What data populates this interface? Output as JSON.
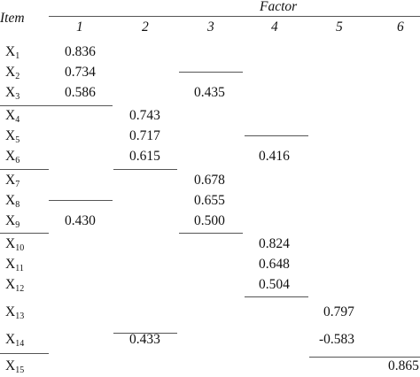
{
  "header": {
    "item_label": "Item",
    "factor_label": "Factor",
    "factor_numbers": [
      "1",
      "2",
      "3",
      "4",
      "5",
      "6"
    ]
  },
  "items": [
    {
      "base": "X",
      "sub": "1"
    },
    {
      "base": "X",
      "sub": "2"
    },
    {
      "base": "X",
      "sub": "3"
    },
    {
      "base": "X",
      "sub": "4"
    },
    {
      "base": "X",
      "sub": "5"
    },
    {
      "base": "X",
      "sub": "6"
    },
    {
      "base": "X",
      "sub": "7"
    },
    {
      "base": "X",
      "sub": "8"
    },
    {
      "base": "X",
      "sub": "9"
    },
    {
      "base": "X",
      "sub": "10"
    },
    {
      "base": "X",
      "sub": "11"
    },
    {
      "base": "X",
      "sub": "12"
    },
    {
      "base": "X",
      "sub": "13"
    },
    {
      "base": "X",
      "sub": "14"
    },
    {
      "base": "X",
      "sub": "15"
    }
  ],
  "loadings": [
    {
      "row": 0,
      "factor": 1,
      "value": "0.836"
    },
    {
      "row": 1,
      "factor": 1,
      "value": "0.734"
    },
    {
      "row": 2,
      "factor": 1,
      "value": "0.586"
    },
    {
      "row": 2,
      "factor": 3,
      "value": "0.435"
    },
    {
      "row": 3,
      "factor": 2,
      "value": "0.743"
    },
    {
      "row": 4,
      "factor": 2,
      "value": "0.717"
    },
    {
      "row": 5,
      "factor": 2,
      "value": "0.615"
    },
    {
      "row": 5,
      "factor": 4,
      "value": "0.416"
    },
    {
      "row": 6,
      "factor": 3,
      "value": "0.678"
    },
    {
      "row": 7,
      "factor": 3,
      "value": "0.655"
    },
    {
      "row": 8,
      "factor": 1,
      "value": "0.430"
    },
    {
      "row": 8,
      "factor": 3,
      "value": "0.500"
    },
    {
      "row": 9,
      "factor": 4,
      "value": "0.824"
    },
    {
      "row": 10,
      "factor": 4,
      "value": "0.648"
    },
    {
      "row": 11,
      "factor": 4,
      "value": "0.504"
    },
    {
      "row": 12,
      "factor": 5,
      "value": "0.797"
    },
    {
      "row": 13,
      "factor": 2,
      "value": "0.433"
    },
    {
      "row": 13,
      "factor": 5,
      "value": "-0.583"
    },
    {
      "row": 14,
      "factor": 6,
      "value": "0.865"
    }
  ]
}
